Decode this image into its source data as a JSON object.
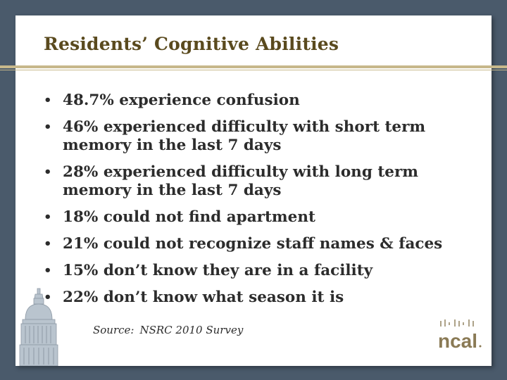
{
  "slide": {
    "title": "Residents’ Cognitive Abilities",
    "bullets": [
      {
        "text": "48.7% experience confusion"
      },
      {
        "text": "46% experienced difficulty with short term memory in the last 7 days"
      },
      {
        "text": "28% experienced difficulty with long term memory in the last 7 days"
      },
      {
        "text": "18% could not find apartment"
      },
      {
        "text": "21% could not recognize staff names & faces"
      },
      {
        "text": "15% don’t know they are in a facility"
      },
      {
        "text": "22% don’t know what season it is"
      }
    ],
    "source_label": "Source:",
    "source_text": "NSRC 2010 Survey",
    "logo_text": "ncal"
  },
  "colors": {
    "background": "#4a5a6b",
    "title": "#5a4a1e",
    "rule": "#c7b88b",
    "body_text": "#2c2c2c",
    "logo": "#8a7a55"
  },
  "icons": {
    "bullet": "•",
    "capitol": "capitol-dome-icon",
    "logo": "ncal-logo"
  }
}
